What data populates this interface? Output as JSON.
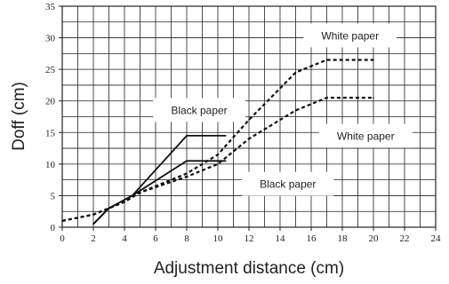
{
  "chart_data": {
    "type": "line",
    "title": "",
    "xlabel": "Adjustment distance (cm)",
    "ylabel": "Doff (cm)",
    "xlim": [
      0,
      24
    ],
    "ylim": [
      0,
      35
    ],
    "x_ticks": [
      0,
      2,
      4,
      6,
      8,
      10,
      12,
      14,
      16,
      18,
      20,
      22,
      24
    ],
    "y_ticks": [
      0,
      5,
      10,
      15,
      20,
      25,
      30,
      35
    ],
    "grid": true,
    "series": [
      {
        "style": "solid",
        "x": [
          2,
          3,
          4.5,
          8,
          10.5
        ],
        "y": [
          0.5,
          3,
          5,
          14.5,
          14.5
        ]
      },
      {
        "style": "solid",
        "x": [
          2,
          3,
          4.5,
          8,
          10.5
        ],
        "y": [
          0.5,
          3,
          5,
          10.5,
          10.5
        ]
      },
      {
        "style": "dashed",
        "x": [
          0,
          2,
          4,
          5,
          8,
          10,
          12,
          15,
          17,
          20
        ],
        "y": [
          1,
          2,
          4,
          5.5,
          8.5,
          11.5,
          17,
          24.5,
          26.5,
          26.5
        ]
      },
      {
        "style": "dashed",
        "x": [
          0,
          2,
          4,
          5,
          8,
          10,
          12,
          15,
          17,
          20
        ],
        "y": [
          1,
          2,
          4,
          5.5,
          8,
          10,
          14,
          18.5,
          20.5,
          20.5
        ]
      }
    ],
    "annotations": [
      {
        "text": "White paper",
        "x": 18.5,
        "y": 30.3
      },
      {
        "text": "Black paper",
        "x": 8.8,
        "y": 18.5
      },
      {
        "text": "White paper",
        "x": 19.5,
        "y": 14.4
      },
      {
        "text": "Black paper",
        "x": 14.5,
        "y": 6.8
      }
    ]
  }
}
